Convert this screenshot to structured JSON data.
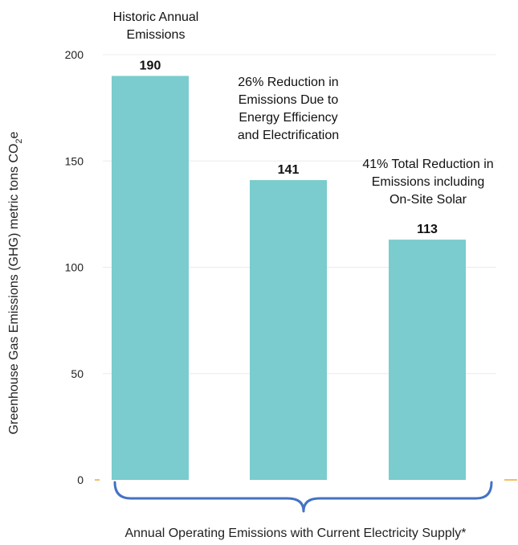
{
  "chart_data": {
    "type": "bar",
    "categories": [
      "",
      "",
      ""
    ],
    "values": [
      190,
      141,
      113
    ],
    "data_labels": [
      "190",
      "141",
      "113"
    ],
    "annotations": [
      [
        "Historic Annual",
        "Emissions"
      ],
      [
        "26% Reduction in",
        "Emissions Due to",
        "Energy Efficiency",
        "and Electrification"
      ],
      [
        "41% Total Reduction in",
        "Emissions including",
        "On-Site Solar"
      ]
    ],
    "ylabel": "Greenhouse Gas Emissions (GHG) metric tons CO",
    "ylabel_subscript": "2",
    "ylabel_suffix": "e",
    "xlabel": "Annual Operating Emissions with Current Electricity Supply*",
    "ylim": [
      0,
      200
    ],
    "yticks": [
      0,
      50,
      100,
      150,
      200
    ],
    "grid": true,
    "bar_color": "#7accce",
    "brace_color": "#4472c4",
    "axis_tick_color": "#f0a830"
  }
}
